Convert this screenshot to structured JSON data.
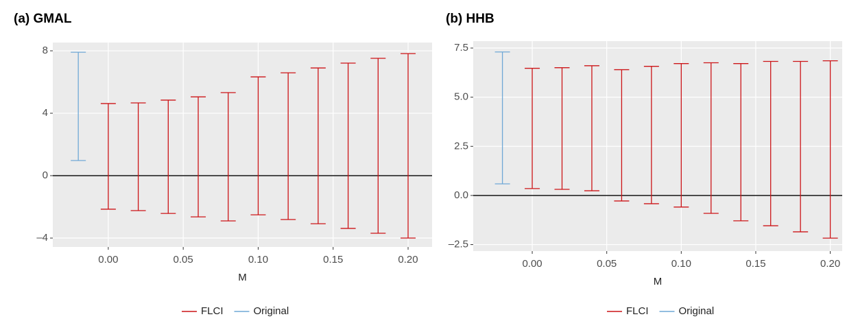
{
  "chart_data": [
    {
      "type": "errorbar",
      "title": "(a) GMAL",
      "x_label": "M",
      "xlim": [
        -0.037,
        0.216
      ],
      "ylim": [
        -4.57,
        8.53
      ],
      "xticks": [
        {
          "value": 0,
          "label": "0.00"
        },
        {
          "value": 0.05,
          "label": "0.05"
        },
        {
          "value": 0.1,
          "label": "0.10"
        },
        {
          "value": 0.15,
          "label": "0.15"
        },
        {
          "value": 0.2,
          "label": "0.20"
        }
      ],
      "yticks": [
        {
          "value": -4,
          "label": "–4"
        },
        0,
        4,
        8
      ],
      "grid": true,
      "reference_line": 0,
      "legend": "bottom",
      "series": [
        {
          "name": "FLCI",
          "color": "#cc1417",
          "x": [
            0,
            0.02,
            0.04,
            0.06,
            0.08,
            0.1,
            0.12,
            0.14,
            0.16,
            0.18,
            0.2
          ],
          "low": [
            -2.15,
            -2.24,
            -2.42,
            -2.64,
            -2.9,
            -2.51,
            -2.81,
            -3.08,
            -3.38,
            -3.69,
            -4.0
          ],
          "high": [
            4.62,
            4.66,
            4.84,
            5.05,
            5.32,
            6.33,
            6.59,
            6.9,
            7.21,
            7.52,
            7.82
          ]
        },
        {
          "name": "Original",
          "color": "#6fa8d6",
          "x": [
            -0.02
          ],
          "low": [
            0.97
          ],
          "high": [
            7.91
          ]
        }
      ]
    },
    {
      "type": "errorbar",
      "title": "(b) HHB",
      "x_label": "M",
      "xlim": [
        -0.0396,
        0.208
      ],
      "ylim": [
        -2.83,
        7.85
      ],
      "xticks": [
        {
          "value": 0,
          "label": "0.00"
        },
        {
          "value": 0.05,
          "label": "0.05"
        },
        {
          "value": 0.1,
          "label": "0.10"
        },
        {
          "value": 0.15,
          "label": "0.15"
        },
        {
          "value": 0.2,
          "label": "0.20"
        }
      ],
      "yticks": [
        {
          "value": -2.5,
          "label": "–2.5"
        },
        {
          "value": 0,
          "label": "0.0"
        },
        2.5,
        {
          "value": 5,
          "label": "5.0"
        },
        7.5
      ],
      "grid": true,
      "reference_line": 0,
      "legend": "bottom",
      "series": [
        {
          "name": "FLCI",
          "color": "#cc1417",
          "x": [
            0,
            0.02,
            0.04,
            0.06,
            0.08,
            0.1,
            0.12,
            0.14,
            0.16,
            0.18,
            0.2
          ],
          "low": [
            0.35,
            0.31,
            0.24,
            -0.28,
            -0.42,
            -0.59,
            -0.91,
            -1.29,
            -1.54,
            -1.85,
            -2.17
          ],
          "high": [
            6.47,
            6.5,
            6.6,
            6.4,
            6.57,
            6.71,
            6.75,
            6.71,
            6.82,
            6.82,
            6.85
          ]
        },
        {
          "name": "Original",
          "color": "#6fa8d6",
          "x": [
            -0.02
          ],
          "low": [
            0.59
          ],
          "high": [
            7.3
          ]
        }
      ]
    }
  ]
}
